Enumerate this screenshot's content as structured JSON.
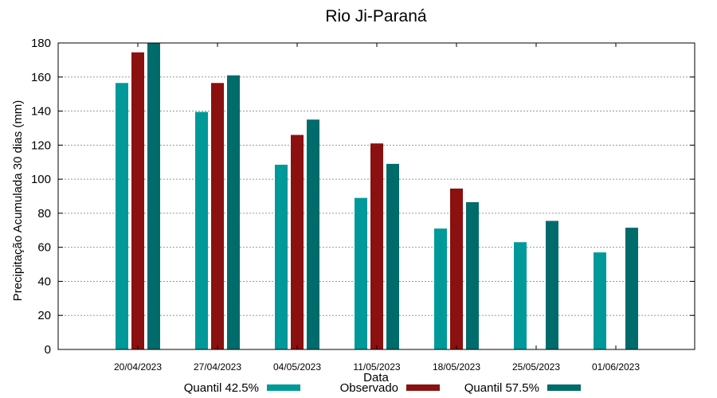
{
  "chart_data": {
    "type": "bar",
    "title": "Rio Ji-Paraná",
    "xlabel": "Data",
    "ylabel": "Precipitação Acumulada 30 dias (mm)",
    "ylim": [
      0,
      180
    ],
    "yticks": [
      0,
      20,
      40,
      60,
      80,
      100,
      120,
      140,
      160,
      180
    ],
    "grid": true,
    "legend_position": "bottom",
    "categories": [
      "20/04/2023",
      "27/04/2023",
      "04/05/2023",
      "11/05/2023",
      "18/05/2023",
      "25/05/2023",
      "01/06/2023"
    ],
    "series": [
      {
        "name": "Quantil 42.5%",
        "color": "#009999",
        "values": [
          156.5,
          139.5,
          108.5,
          89,
          71,
          63,
          57
        ]
      },
      {
        "name": "Observado",
        "color": "#8b1010",
        "values": [
          174.5,
          156.5,
          126,
          121,
          94.5,
          null,
          null
        ]
      },
      {
        "name": "Quantil 57.5%",
        "color": "#006b6b",
        "values": [
          180,
          161,
          135,
          109,
          86.5,
          75.5,
          71.5
        ]
      }
    ]
  }
}
